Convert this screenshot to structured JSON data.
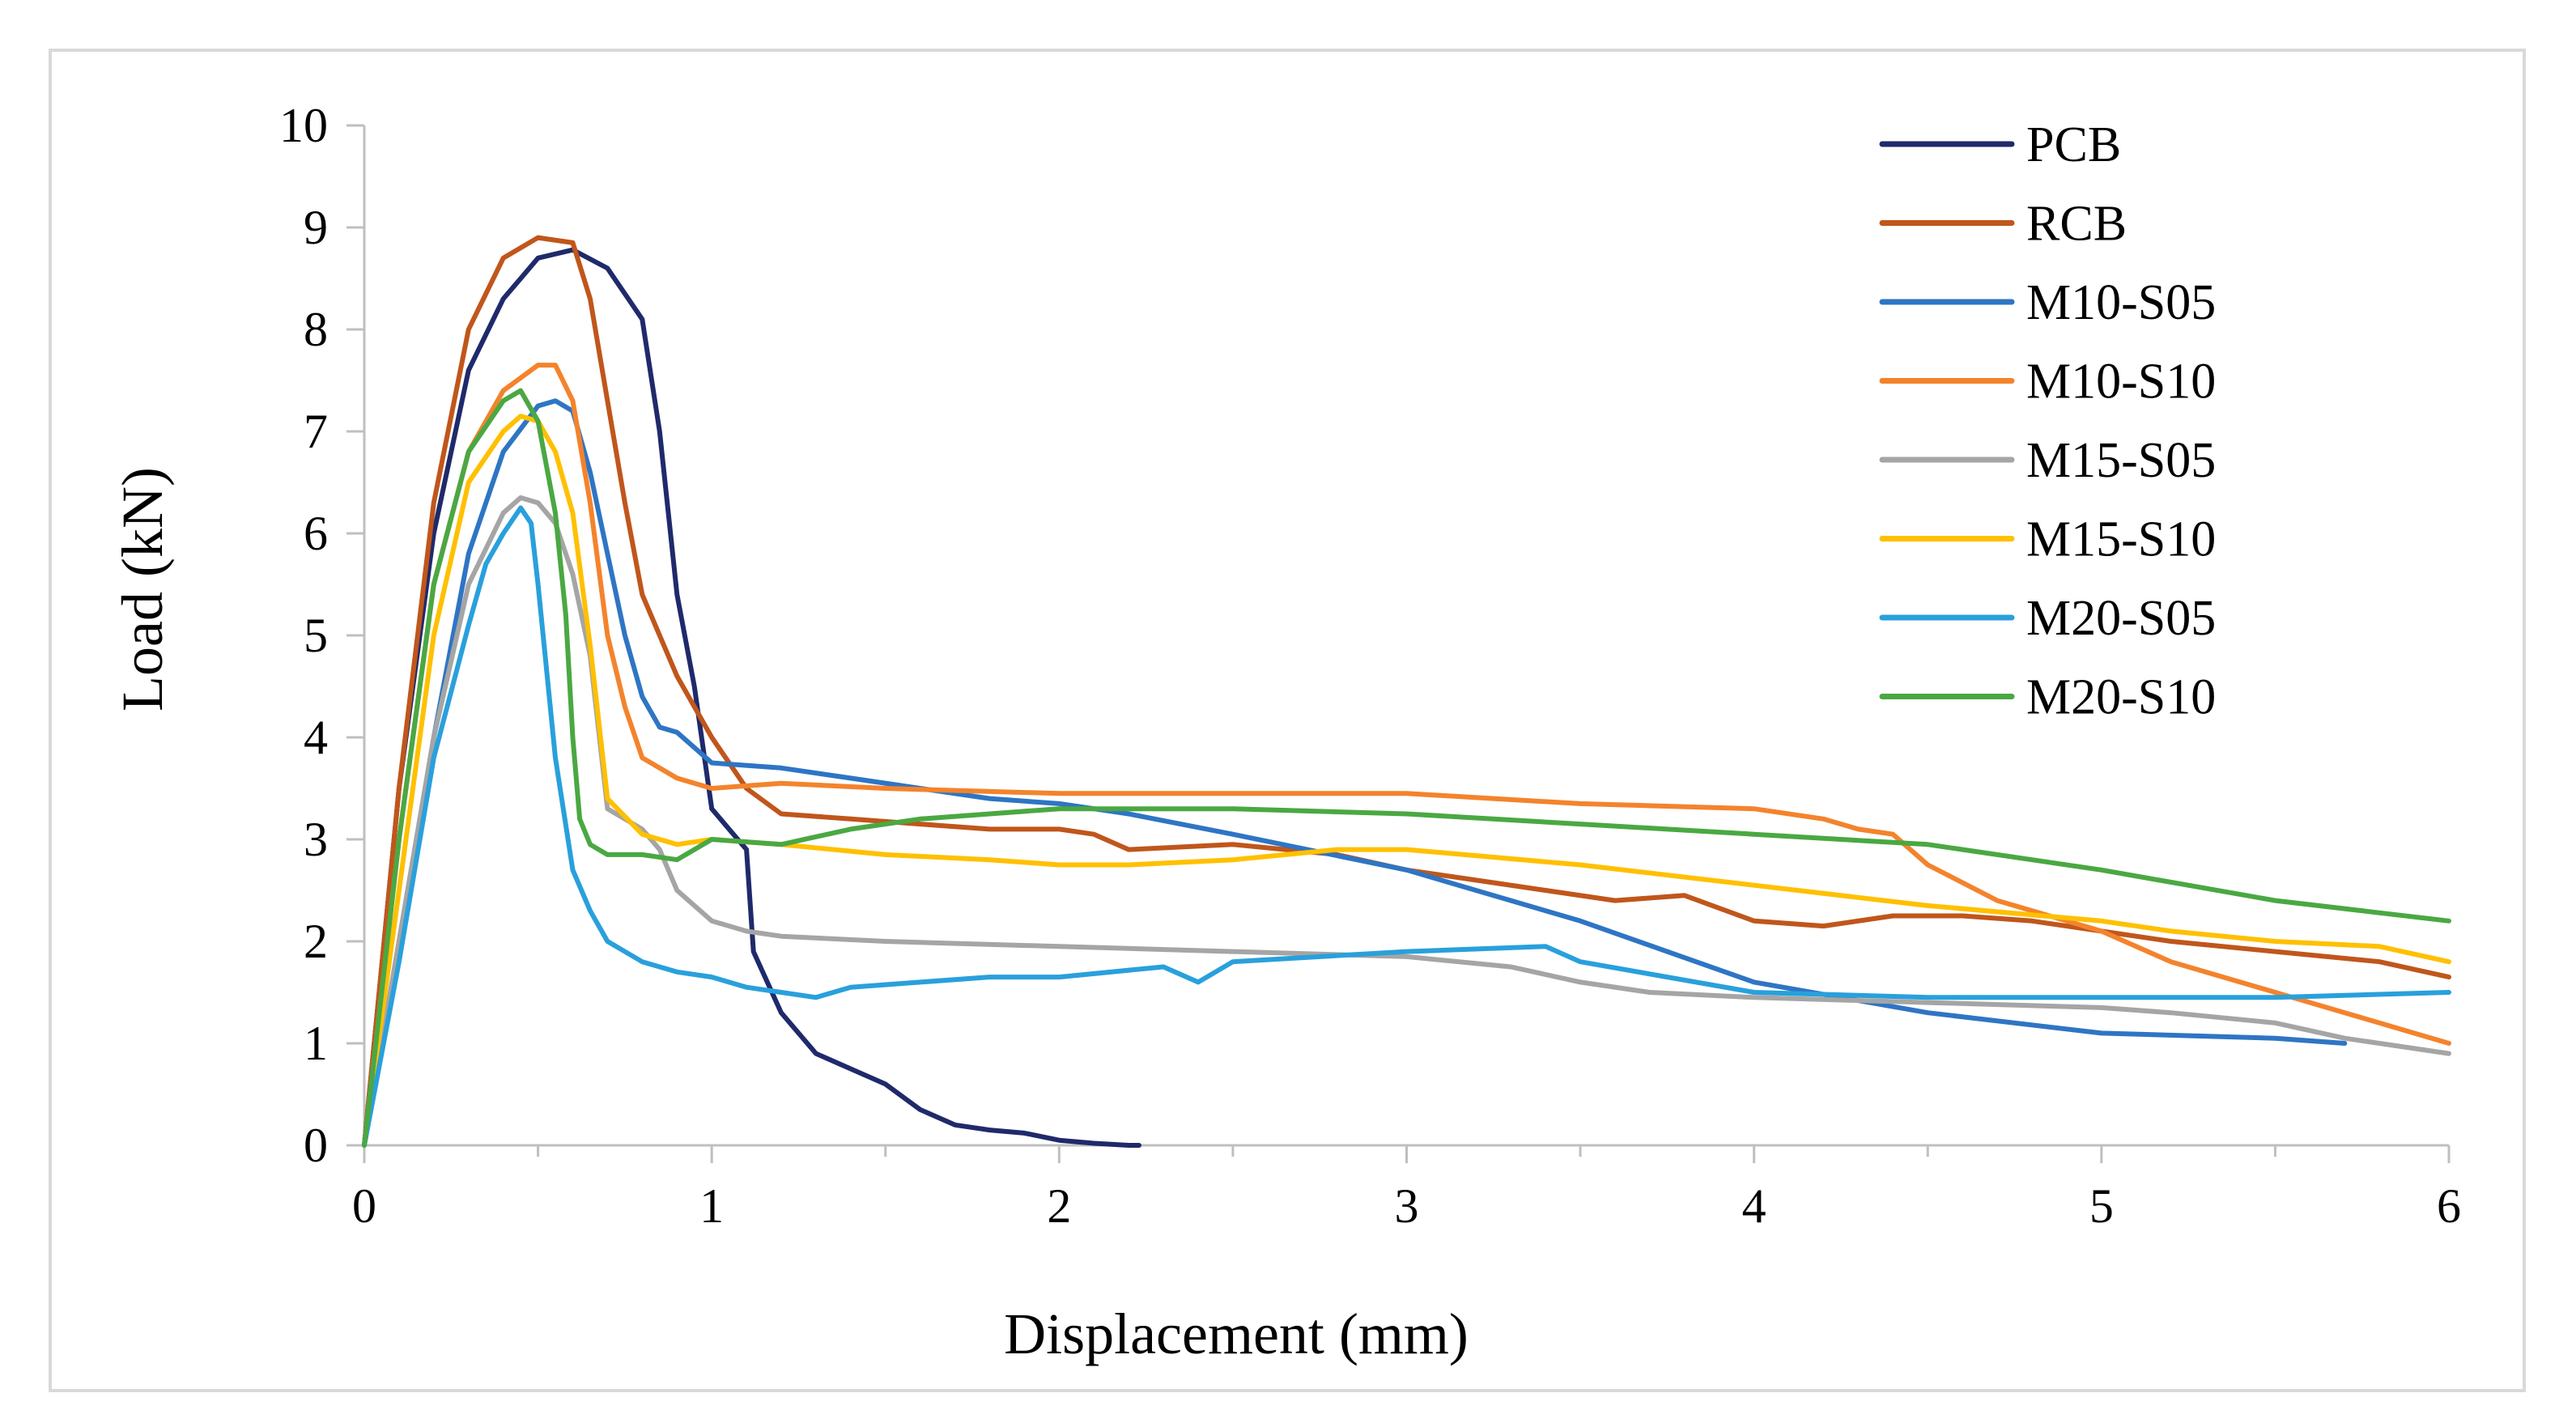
{
  "chart_data": {
    "type": "line",
    "title": "",
    "xlabel": "Displacement (mm)",
    "ylabel": "Load (kN)",
    "xlim": [
      0,
      6
    ],
    "ylim": [
      0,
      10
    ],
    "xticks": [
      "0",
      "1",
      "2",
      "3",
      "4",
      "5",
      "6"
    ],
    "yticks": [
      "0",
      "1",
      "2",
      "3",
      "4",
      "5",
      "6",
      "7",
      "8",
      "9",
      "10"
    ],
    "grid": false,
    "legend_position": "top-right",
    "series": [
      {
        "name": "PCB",
        "color": "#1f2a6b",
        "x": [
          0,
          0.1,
          0.2,
          0.3,
          0.4,
          0.5,
          0.6,
          0.7,
          0.8,
          0.85,
          0.9,
          0.95,
          1.0,
          1.05,
          1.1,
          1.12,
          1.2,
          1.3,
          1.4,
          1.5,
          1.6,
          1.7,
          1.8,
          1.9,
          2.0,
          2.1,
          2.2,
          2.23
        ],
        "y": [
          0,
          3.5,
          6.0,
          7.6,
          8.3,
          8.7,
          8.78,
          8.6,
          8.1,
          7.0,
          5.4,
          4.5,
          3.3,
          3.1,
          2.9,
          1.9,
          1.3,
          0.9,
          0.75,
          0.6,
          0.35,
          0.2,
          0.15,
          0.12,
          0.05,
          0.02,
          0.0,
          0.0
        ]
      },
      {
        "name": "RCB",
        "color": "#c0561b",
        "x": [
          0,
          0.1,
          0.2,
          0.3,
          0.4,
          0.5,
          0.6,
          0.65,
          0.7,
          0.75,
          0.8,
          0.9,
          1.0,
          1.1,
          1.2,
          1.4,
          1.6,
          1.8,
          2.0,
          2.1,
          2.2,
          2.5,
          2.8,
          3.0,
          3.2,
          3.4,
          3.6,
          3.8,
          4.0,
          4.2,
          4.4,
          4.6,
          4.8,
          5.0,
          5.2,
          5.5,
          5.8,
          6.0
        ],
        "y": [
          0,
          3.5,
          6.3,
          8.0,
          8.7,
          8.9,
          8.85,
          8.3,
          7.3,
          6.3,
          5.4,
          4.6,
          4.0,
          3.5,
          3.25,
          3.2,
          3.15,
          3.1,
          3.1,
          3.05,
          2.9,
          2.95,
          2.85,
          2.7,
          2.6,
          2.5,
          2.4,
          2.45,
          2.2,
          2.15,
          2.25,
          2.25,
          2.2,
          2.1,
          2.0,
          1.9,
          1.8,
          1.65
        ]
      },
      {
        "name": "M10-S05",
        "color": "#2e75c4",
        "x": [
          0,
          0.1,
          0.2,
          0.3,
          0.4,
          0.5,
          0.55,
          0.6,
          0.65,
          0.7,
          0.75,
          0.8,
          0.85,
          0.9,
          1.0,
          1.2,
          1.4,
          1.6,
          1.8,
          2.0,
          2.2,
          2.5,
          3.0,
          3.5,
          4.0,
          4.5,
          5.0,
          5.5,
          5.7
        ],
        "y": [
          0,
          2.0,
          4.0,
          5.8,
          6.8,
          7.25,
          7.3,
          7.2,
          6.6,
          5.8,
          5.0,
          4.4,
          4.1,
          4.05,
          3.75,
          3.7,
          3.6,
          3.5,
          3.4,
          3.35,
          3.25,
          3.05,
          2.7,
          2.2,
          1.6,
          1.3,
          1.1,
          1.05,
          1.0
        ]
      },
      {
        "name": "M10-S10",
        "color": "#f4832c",
        "x": [
          0,
          0.1,
          0.2,
          0.3,
          0.4,
          0.5,
          0.55,
          0.6,
          0.65,
          0.7,
          0.75,
          0.8,
          0.9,
          1.0,
          1.2,
          1.5,
          2.0,
          2.5,
          3.0,
          3.5,
          4.0,
          4.2,
          4.3,
          4.4,
          4.5,
          4.7,
          4.9,
          5.0,
          5.2,
          5.5,
          5.8,
          6.0
        ],
        "y": [
          0,
          3.0,
          5.5,
          6.8,
          7.4,
          7.65,
          7.65,
          7.3,
          6.3,
          5.0,
          4.3,
          3.8,
          3.6,
          3.5,
          3.55,
          3.5,
          3.45,
          3.45,
          3.45,
          3.35,
          3.3,
          3.2,
          3.1,
          3.05,
          2.75,
          2.4,
          2.2,
          2.1,
          1.8,
          1.5,
          1.2,
          1.0
        ]
      },
      {
        "name": "M15-S05",
        "color": "#a5a5a5",
        "x": [
          0,
          0.1,
          0.2,
          0.3,
          0.4,
          0.45,
          0.5,
          0.55,
          0.6,
          0.65,
          0.7,
          0.8,
          0.85,
          0.9,
          1.0,
          1.1,
          1.2,
          1.5,
          2.0,
          2.5,
          3.0,
          3.3,
          3.5,
          3.7,
          4.0,
          4.5,
          5.0,
          5.2,
          5.5,
          5.7,
          6.0
        ],
        "y": [
          0,
          2.0,
          4.0,
          5.5,
          6.2,
          6.35,
          6.3,
          6.1,
          5.6,
          4.8,
          3.3,
          3.1,
          2.9,
          2.5,
          2.2,
          2.1,
          2.05,
          2.0,
          1.95,
          1.9,
          1.85,
          1.75,
          1.6,
          1.5,
          1.45,
          1.4,
          1.35,
          1.3,
          1.2,
          1.05,
          0.9
        ]
      },
      {
        "name": "M15-S10",
        "color": "#ffc000",
        "x": [
          0,
          0.1,
          0.2,
          0.3,
          0.4,
          0.45,
          0.5,
          0.55,
          0.6,
          0.65,
          0.7,
          0.8,
          0.9,
          1.0,
          1.2,
          1.5,
          1.8,
          2.0,
          2.2,
          2.5,
          2.8,
          3.0,
          3.5,
          4.0,
          4.5,
          5.0,
          5.2,
          5.5,
          5.8,
          6.0
        ],
        "y": [
          0,
          2.5,
          5.0,
          6.5,
          7.0,
          7.15,
          7.1,
          6.8,
          6.2,
          4.9,
          3.4,
          3.05,
          2.95,
          3.0,
          2.95,
          2.85,
          2.8,
          2.75,
          2.75,
          2.8,
          2.9,
          2.9,
          2.75,
          2.55,
          2.35,
          2.2,
          2.1,
          2.0,
          1.95,
          1.8
        ]
      },
      {
        "name": "M20-S05",
        "color": "#29a0dc",
        "x": [
          0,
          0.1,
          0.2,
          0.3,
          0.35,
          0.4,
          0.45,
          0.48,
          0.5,
          0.55,
          0.6,
          0.65,
          0.7,
          0.8,
          0.9,
          1.0,
          1.1,
          1.2,
          1.3,
          1.4,
          1.6,
          1.8,
          2.0,
          2.3,
          2.4,
          2.5,
          3.0,
          3.4,
          3.5,
          4.0,
          4.5,
          5.0,
          5.5,
          6.0
        ],
        "y": [
          0,
          1.8,
          3.8,
          5.1,
          5.7,
          6.0,
          6.25,
          6.1,
          5.5,
          3.8,
          2.7,
          2.3,
          2.0,
          1.8,
          1.7,
          1.65,
          1.55,
          1.5,
          1.45,
          1.55,
          1.6,
          1.65,
          1.65,
          1.75,
          1.6,
          1.8,
          1.9,
          1.95,
          1.8,
          1.5,
          1.45,
          1.45,
          1.45,
          1.5
        ]
      },
      {
        "name": "M20-S10",
        "color": "#4aa842",
        "x": [
          0,
          0.1,
          0.2,
          0.3,
          0.4,
          0.45,
          0.5,
          0.55,
          0.58,
          0.6,
          0.62,
          0.65,
          0.7,
          0.8,
          0.9,
          1.0,
          1.2,
          1.4,
          1.6,
          1.8,
          2.0,
          2.5,
          3.0,
          3.5,
          4.0,
          4.5,
          5.0,
          5.5,
          6.0
        ],
        "y": [
          0,
          3.0,
          5.5,
          6.8,
          7.3,
          7.4,
          7.1,
          6.2,
          5.2,
          4.0,
          3.2,
          2.95,
          2.85,
          2.85,
          2.8,
          3.0,
          2.95,
          3.1,
          3.2,
          3.25,
          3.3,
          3.3,
          3.25,
          3.15,
          3.05,
          2.95,
          2.7,
          2.4,
          2.2
        ]
      }
    ]
  }
}
